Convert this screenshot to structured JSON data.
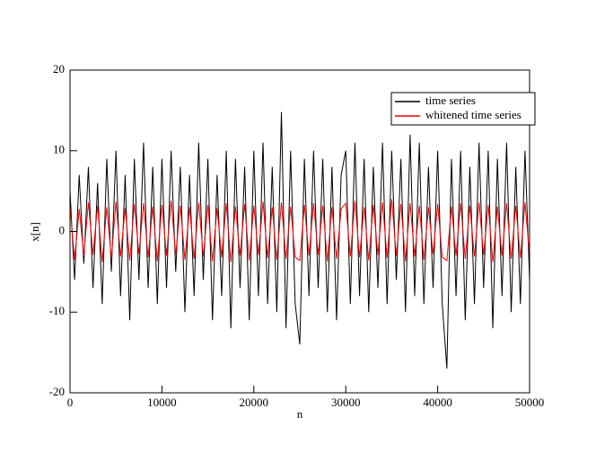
{
  "chart_data": {
    "type": "line",
    "xlabel": "n",
    "ylabel": "x[n]",
    "x": [
      0,
      500,
      1000,
      1500,
      2000,
      2500,
      3000,
      3500,
      4000,
      4500,
      5000,
      5500,
      6000,
      6500,
      7000,
      7500,
      8000,
      8500,
      9000,
      9500,
      10000,
      10500,
      11000,
      11500,
      12000,
      12500,
      13000,
      13500,
      14000,
      14500,
      15000,
      15500,
      16000,
      16500,
      17000,
      17500,
      18000,
      18500,
      19000,
      19500,
      20000,
      20500,
      21000,
      21500,
      22000,
      22500,
      23000,
      23500,
      24000,
      24500,
      25000,
      25500,
      26000,
      26500,
      27000,
      27500,
      28000,
      28500,
      29000,
      29500,
      30000,
      30500,
      31000,
      31500,
      32000,
      32500,
      33000,
      33500,
      34000,
      34500,
      35000,
      35500,
      36000,
      36500,
      37000,
      37500,
      38000,
      38500,
      39000,
      39500,
      40000,
      40500,
      41000,
      41500,
      42000,
      42500,
      43000,
      43500,
      44000,
      44500,
      45000,
      45500,
      46000,
      46500,
      47000,
      47500,
      48000,
      48500,
      49000,
      49500,
      50000
    ],
    "series": [
      {
        "name": "time series",
        "color": "#000000",
        "values": [
          5,
          -6,
          7,
          -4,
          8,
          -7,
          6,
          -9,
          9,
          -5,
          10,
          -8,
          7,
          -11,
          9,
          -6,
          11,
          -7,
          8,
          -9,
          9,
          -7,
          10,
          -5,
          8,
          -10,
          7,
          -8,
          11,
          -6,
          9,
          -11,
          7,
          -8,
          10,
          -12,
          9,
          -7,
          8,
          -11,
          10,
          -8,
          11,
          -9,
          8,
          -10,
          14.8,
          -12,
          10,
          -9,
          -14,
          9,
          -8,
          10,
          -7,
          9,
          -10,
          8,
          -11,
          7,
          10,
          -9,
          11,
          -8,
          9,
          -10,
          8,
          -7,
          11,
          -9,
          10,
          -6,
          9,
          -10,
          12,
          -8,
          11,
          -9,
          8,
          -7,
          10,
          -9,
          -17,
          9,
          -8,
          10,
          -11,
          8,
          -9,
          11,
          -7,
          10,
          -12,
          9,
          -8,
          11,
          -10,
          8,
          -9,
          10,
          -6
        ]
      },
      {
        "name": "whitened time series",
        "color": "#ff0000",
        "values": [
          3,
          -3.5,
          2.8,
          -3,
          3.6,
          -2.9,
          3.2,
          -3.8,
          3,
          -3.3,
          3.7,
          -3.1,
          2.9,
          -3.6,
          3.4,
          -2.8,
          3.5,
          -3.2,
          3.1,
          -3.7,
          3.3,
          -3,
          3.8,
          -2.9,
          3.2,
          -3.5,
          3,
          -3.4,
          3.6,
          -3.1,
          3.3,
          -3.7,
          2.9,
          -3.2,
          3.5,
          -3.8,
          3.1,
          -3,
          3.4,
          -3.6,
          3.2,
          -2.9,
          3.7,
          -3.3,
          3,
          -3.5,
          3.6,
          -3.4,
          3.1,
          -3.2,
          -3.6,
          3.3,
          -3,
          3.5,
          -2.9,
          3.2,
          -3.7,
          3,
          -3.4,
          2.8,
          3.5,
          -3.1,
          3.8,
          -3.2,
          3,
          -3.6,
          3.3,
          -2.9,
          3.6,
          -3.3,
          4,
          -3,
          3.4,
          -3.7,
          3.5,
          -3.1,
          3.2,
          -3.5,
          3,
          -2.8,
          3.4,
          -3.2,
          -3.6,
          3.1,
          -3,
          3.5,
          -3.4,
          3.2,
          -3.1,
          3.6,
          -2.9,
          3.3,
          -3.8,
          3.1,
          -3,
          3.5,
          -3.4,
          3.2,
          -3.3,
          3.6,
          -3
        ]
      }
    ],
    "xlim": [
      0,
      50000
    ],
    "xticks": [
      0,
      10000,
      20000,
      30000,
      40000,
      50000
    ],
    "ylim": [
      -20,
      20
    ],
    "yticks": [
      -20,
      -10,
      0,
      10,
      20
    ],
    "legend": "upper-right"
  }
}
